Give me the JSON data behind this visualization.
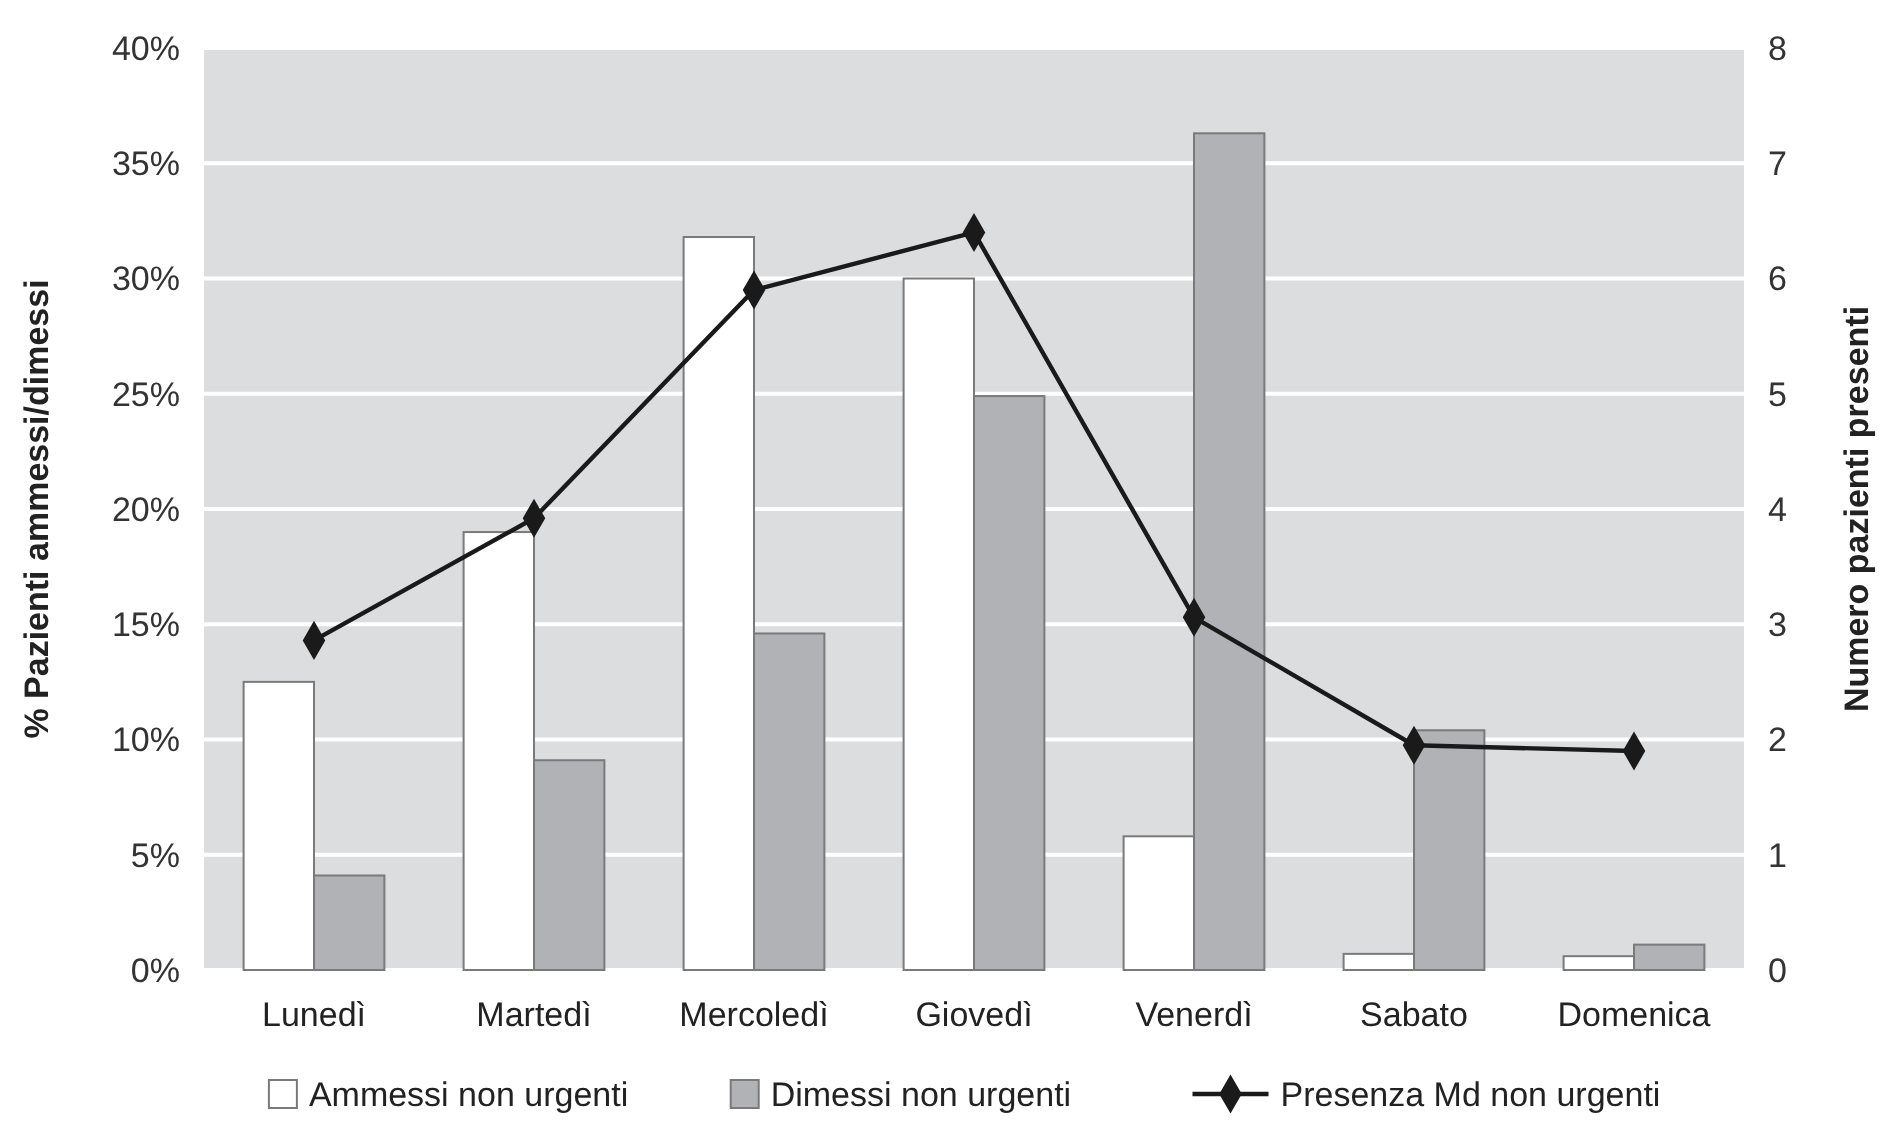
{
  "chart_data": {
    "type": "bar",
    "ylabel": "% Pazienti ammessi/dimessi",
    "y2label": "Numero pazienti presenti",
    "categories": [
      "Lunedì",
      "Martedì",
      "Mercoledì",
      "Giovedì",
      "Venerdì",
      "Sabato",
      "Domenica"
    ],
    "series": [
      {
        "name": "Ammessi non urgenti",
        "color": "#ffffff",
        "values": [
          12.5,
          19.0,
          31.8,
          30.0,
          5.8,
          0.7,
          0.6
        ]
      },
      {
        "name": "Dimessi non urgenti",
        "color": "#b1b2b6",
        "values": [
          4.1,
          9.1,
          14.6,
          24.9,
          36.3,
          10.4,
          1.1
        ]
      },
      {
        "name": "Presenza Md non urgenti",
        "type": "line",
        "axis": "y2",
        "color": "#1a1a1a",
        "marker": "diamond",
        "values": [
          2.86,
          3.92,
          5.9,
          6.4,
          3.06,
          1.95,
          1.9
        ]
      }
    ],
    "ylim": [
      0,
      40
    ],
    "yticks": [
      {
        "value": 0,
        "label": "0%"
      },
      {
        "value": 5,
        "label": "5%"
      },
      {
        "value": 10,
        "label": "10%"
      },
      {
        "value": 15,
        "label": "15%"
      },
      {
        "value": 20,
        "label": "20%"
      },
      {
        "value": 25,
        "label": "25%"
      },
      {
        "value": 30,
        "label": "30%"
      },
      {
        "value": 35,
        "label": "35%"
      },
      {
        "value": 40,
        "label": "40%"
      }
    ],
    "y2lim": [
      0,
      8
    ],
    "y2ticks": [
      0,
      1,
      2,
      3,
      4,
      5,
      6,
      7,
      8
    ],
    "grid": "y",
    "legend": "bottom"
  }
}
